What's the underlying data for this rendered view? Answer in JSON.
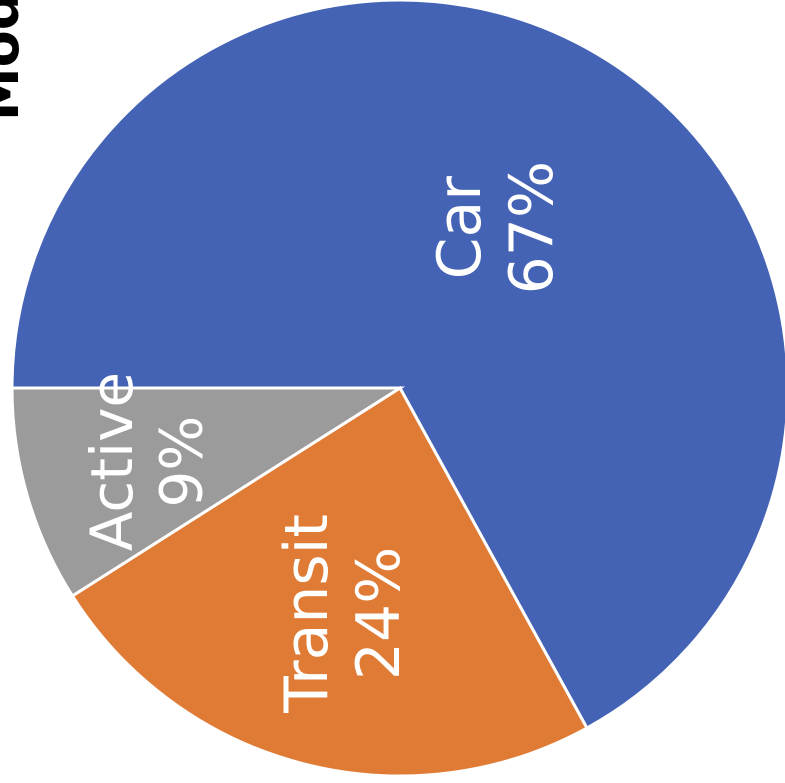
{
  "chart_data": {
    "type": "pie",
    "title": "Mode",
    "slices": [
      {
        "label": "Car",
        "value": 67,
        "value_label": "67%",
        "color": "#4463b5"
      },
      {
        "label": "Transit",
        "value": 24,
        "value_label": "24%",
        "color": "#e07b35"
      },
      {
        "label": "Active",
        "value": 9,
        "value_label": "9%",
        "color": "#9b9b9b"
      }
    ],
    "label_color": "#ffffff",
    "legend": "none"
  }
}
